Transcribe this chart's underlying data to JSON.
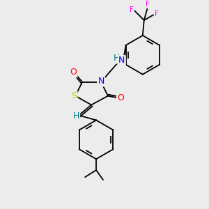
{
  "bg_color": "#ececec",
  "atom_colors": {
    "S": "#cccc00",
    "N": "#0000ff",
    "O": "#ff0000",
    "F": "#ff00ff",
    "H_on_N": "#008080",
    "C": "#000000"
  },
  "font_size_atoms": 9,
  "font_size_small": 7.5,
  "line_width": 1.3
}
